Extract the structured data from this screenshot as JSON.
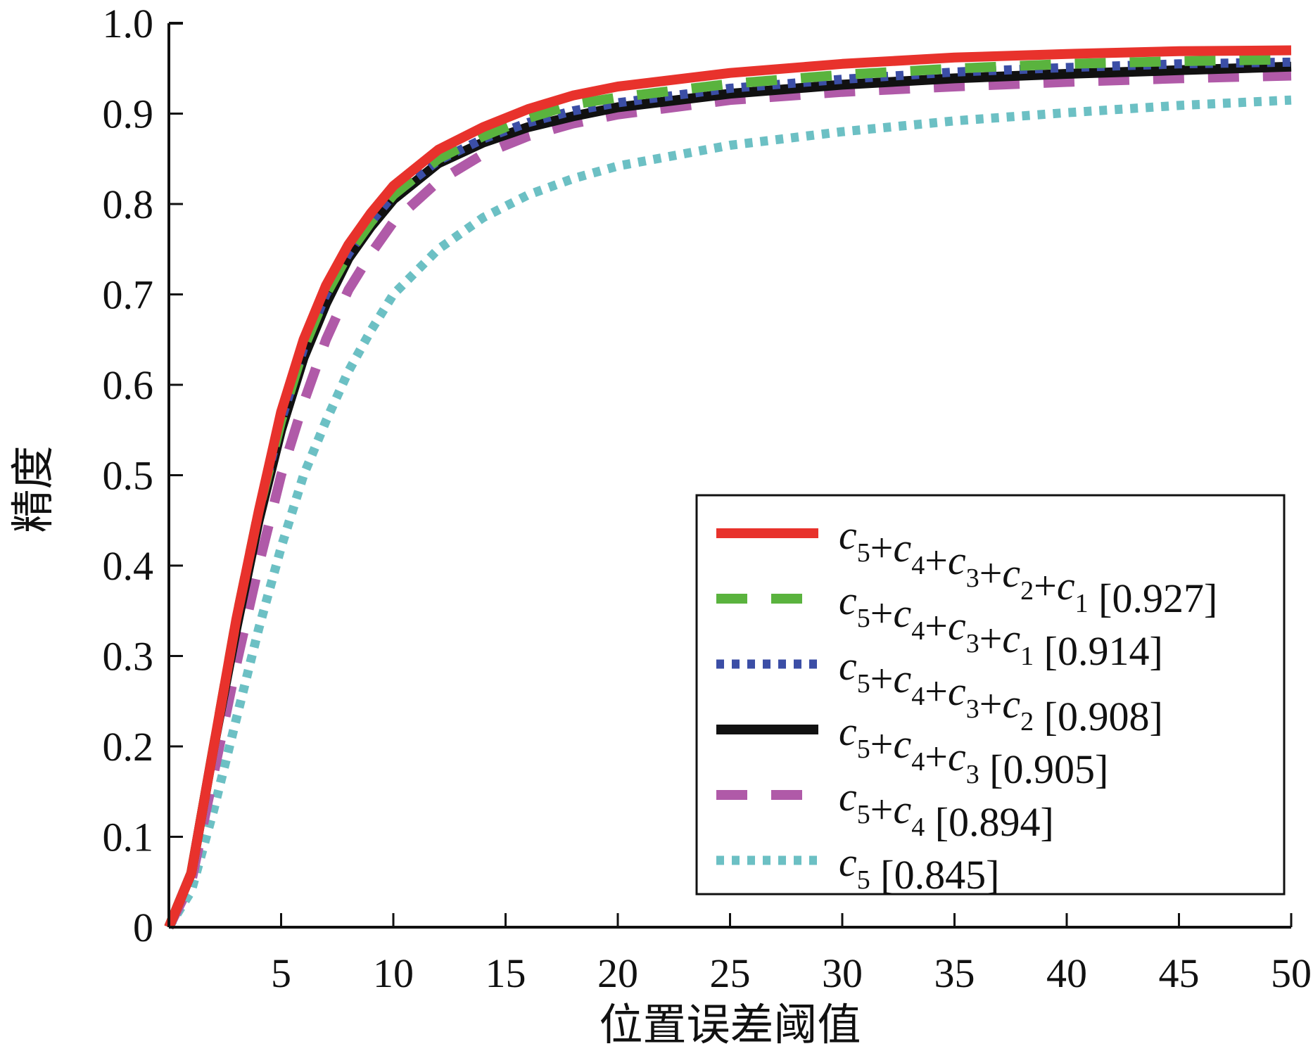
{
  "chart_data": {
    "type": "line",
    "title": "",
    "xlabel": "位置误差阈值",
    "ylabel": "精度",
    "xlim": [
      0,
      50
    ],
    "ylim": [
      0,
      1.0
    ],
    "x_ticks": [
      5,
      10,
      15,
      20,
      25,
      30,
      35,
      40,
      45,
      50
    ],
    "x_tick_labels": [
      "5",
      "10",
      "15",
      "20",
      "25",
      "30",
      "35",
      "40",
      "45",
      "50"
    ],
    "y_ticks": [
      0,
      0.1,
      0.2,
      0.3,
      0.4,
      0.5,
      0.6,
      0.7,
      0.8,
      0.9,
      1.0
    ],
    "y_tick_labels": [
      "0",
      "0.1",
      "0.2",
      "0.3",
      "0.4",
      "0.5",
      "0.6",
      "0.7",
      "0.8",
      "0.9",
      "1.0"
    ],
    "grid": false,
    "legend_position": "bottom-right",
    "x": [
      0,
      1,
      2,
      3,
      4,
      5,
      6,
      7,
      8,
      9,
      10,
      12,
      14,
      16,
      18,
      20,
      25,
      30,
      35,
      40,
      45,
      50
    ],
    "series": [
      {
        "terms": [
          "5",
          "4",
          "3",
          "2",
          "1"
        ],
        "score": "[0.927]",
        "color": "#e8322c",
        "style": "solid",
        "values": [
          0.0,
          0.06,
          0.2,
          0.34,
          0.46,
          0.57,
          0.65,
          0.71,
          0.755,
          0.79,
          0.82,
          0.86,
          0.885,
          0.905,
          0.92,
          0.93,
          0.945,
          0.955,
          0.962,
          0.966,
          0.969,
          0.97
        ]
      },
      {
        "terms": [
          "5",
          "4",
          "3",
          "1"
        ],
        "score": "[0.914]",
        "color": "#5ab33e",
        "style": "longdash",
        "values": [
          0.0,
          0.06,
          0.2,
          0.34,
          0.46,
          0.56,
          0.64,
          0.7,
          0.745,
          0.78,
          0.81,
          0.85,
          0.875,
          0.895,
          0.91,
          0.918,
          0.933,
          0.943,
          0.95,
          0.955,
          0.958,
          0.96
        ]
      },
      {
        "terms": [
          "5",
          "4",
          "3",
          "2"
        ],
        "score": "[0.908]",
        "color": "#3b4ea6",
        "style": "dotted",
        "values": [
          0.0,
          0.06,
          0.2,
          0.34,
          0.46,
          0.56,
          0.64,
          0.7,
          0.745,
          0.78,
          0.81,
          0.848,
          0.872,
          0.89,
          0.903,
          0.912,
          0.928,
          0.938,
          0.946,
          0.951,
          0.955,
          0.957
        ]
      },
      {
        "terms": [
          "5",
          "4",
          "3"
        ],
        "score": "[0.905]",
        "color": "#111111",
        "style": "solid",
        "values": [
          0.0,
          0.06,
          0.2,
          0.33,
          0.45,
          0.55,
          0.63,
          0.69,
          0.74,
          0.775,
          0.805,
          0.845,
          0.868,
          0.885,
          0.897,
          0.907,
          0.922,
          0.932,
          0.939,
          0.944,
          0.948,
          0.952
        ]
      },
      {
        "terms": [
          "5",
          "4"
        ],
        "score": "[0.894]",
        "color": "#b05aa8",
        "style": "longdash",
        "values": [
          0.0,
          0.05,
          0.17,
          0.29,
          0.4,
          0.5,
          0.58,
          0.65,
          0.705,
          0.745,
          0.78,
          0.825,
          0.855,
          0.875,
          0.889,
          0.899,
          0.915,
          0.924,
          0.93,
          0.935,
          0.939,
          0.942
        ]
      },
      {
        "terms": [
          "5"
        ],
        "score": "[0.845]",
        "color": "#6cc0c4",
        "style": "dotted",
        "values": [
          0.0,
          0.04,
          0.13,
          0.23,
          0.33,
          0.42,
          0.5,
          0.56,
          0.615,
          0.66,
          0.7,
          0.75,
          0.785,
          0.81,
          0.828,
          0.842,
          0.865,
          0.88,
          0.892,
          0.901,
          0.909,
          0.915
        ]
      }
    ]
  }
}
